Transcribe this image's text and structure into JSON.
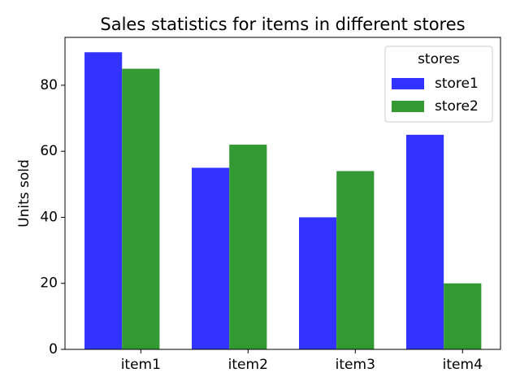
{
  "chart_data": {
    "type": "bar",
    "title": "Sales statistics for items in different stores",
    "ylabel": "Units sold",
    "categories": [
      "item1",
      "item2",
      "item3",
      "item4"
    ],
    "series": [
      {
        "name": "store1",
        "color": "#3333ff",
        "values": [
          90,
          55,
          40,
          65
        ]
      },
      {
        "name": "store2",
        "color": "#339933",
        "values": [
          85,
          62,
          54,
          20
        ]
      }
    ],
    "ylim": [
      0,
      94.5
    ],
    "yticks": [
      0,
      20,
      40,
      60,
      80
    ],
    "grid": false,
    "legend": {
      "title": "stores",
      "position": "upper right"
    }
  }
}
